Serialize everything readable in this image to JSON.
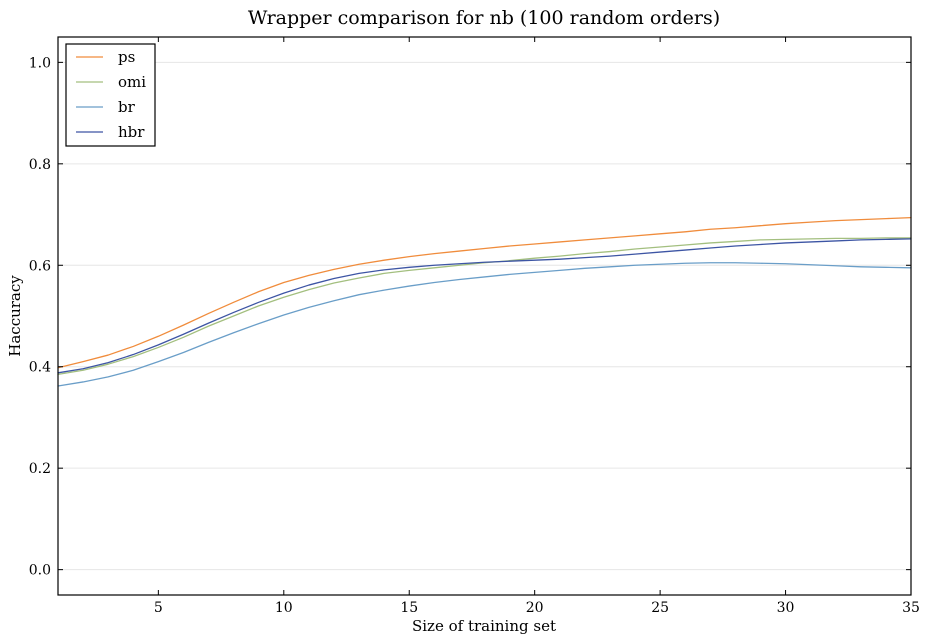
{
  "chart_data": {
    "type": "line",
    "title": "Wrapper comparison for nb (100 random orders)",
    "xlabel": "Size of training set",
    "ylabel": "Haccuracy",
    "xlim": [
      1,
      35
    ],
    "ylim": [
      -0.05,
      1.05
    ],
    "xticks": [
      5,
      10,
      15,
      20,
      25,
      30,
      35
    ],
    "yticks": [
      0.0,
      0.2,
      0.4,
      0.6,
      0.8,
      1.0
    ],
    "xtick_labels": [
      "5",
      "10",
      "15",
      "20",
      "25",
      "30",
      "35"
    ],
    "ytick_labels": [
      "0.0",
      "0.2",
      "0.4",
      "0.6",
      "0.8",
      "1.0"
    ],
    "grid": "horizontal",
    "legend_position": "top-left",
    "x": [
      1,
      2,
      3,
      4,
      5,
      6,
      7,
      8,
      9,
      10,
      11,
      12,
      13,
      14,
      15,
      16,
      17,
      18,
      19,
      20,
      21,
      22,
      23,
      24,
      25,
      26,
      27,
      28,
      29,
      30,
      31,
      32,
      33,
      34,
      35
    ],
    "series": [
      {
        "name": "ps",
        "color": "#f08c3c",
        "values": [
          0.398,
          0.41,
          0.423,
          0.44,
          0.46,
          0.482,
          0.505,
          0.527,
          0.548,
          0.566,
          0.58,
          0.592,
          0.602,
          0.61,
          0.617,
          0.623,
          0.628,
          0.633,
          0.638,
          0.642,
          0.646,
          0.65,
          0.654,
          0.658,
          0.662,
          0.666,
          0.671,
          0.674,
          0.678,
          0.682,
          0.685,
          0.688,
          0.69,
          0.692,
          0.694
        ]
      },
      {
        "name": "omi",
        "color": "#a3bf7f",
        "values": [
          0.385,
          0.393,
          0.405,
          0.42,
          0.438,
          0.458,
          0.48,
          0.5,
          0.52,
          0.537,
          0.552,
          0.565,
          0.575,
          0.584,
          0.59,
          0.595,
          0.6,
          0.605,
          0.609,
          0.614,
          0.618,
          0.623,
          0.627,
          0.632,
          0.636,
          0.64,
          0.644,
          0.647,
          0.65,
          0.651,
          0.652,
          0.653,
          0.653,
          0.654,
          0.654
        ]
      },
      {
        "name": "br",
        "color": "#6a9ec8",
        "values": [
          0.362,
          0.37,
          0.38,
          0.393,
          0.41,
          0.428,
          0.448,
          0.467,
          0.485,
          0.502,
          0.517,
          0.53,
          0.542,
          0.551,
          0.559,
          0.566,
          0.572,
          0.577,
          0.582,
          0.586,
          0.59,
          0.594,
          0.597,
          0.6,
          0.602,
          0.604,
          0.605,
          0.605,
          0.604,
          0.603,
          0.601,
          0.599,
          0.597,
          0.596,
          0.595
        ]
      },
      {
        "name": "hbr",
        "color": "#3d55a4",
        "values": [
          0.388,
          0.396,
          0.408,
          0.424,
          0.443,
          0.464,
          0.486,
          0.507,
          0.527,
          0.545,
          0.561,
          0.574,
          0.584,
          0.591,
          0.596,
          0.6,
          0.603,
          0.606,
          0.608,
          0.61,
          0.612,
          0.615,
          0.618,
          0.622,
          0.626,
          0.63,
          0.634,
          0.638,
          0.641,
          0.644,
          0.646,
          0.648,
          0.65,
          0.651,
          0.652
        ]
      }
    ]
  }
}
